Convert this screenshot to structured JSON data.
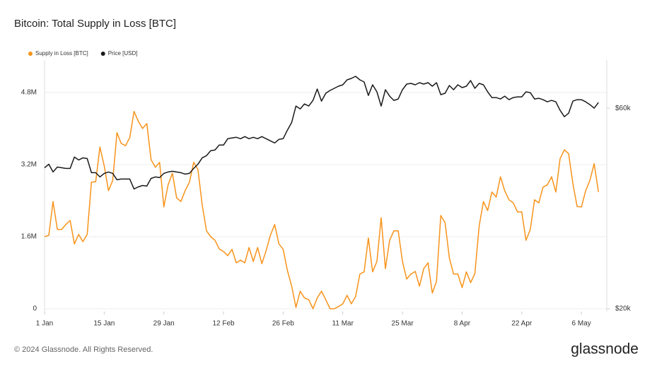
{
  "chart_data": {
    "type": "line",
    "title": "Bitcoin: Total Supply in Loss [BTC]",
    "categories": [
      "1 Jan",
      null,
      null,
      null,
      null,
      null,
      null,
      null,
      null,
      null,
      null,
      null,
      null,
      null,
      "15 Jan",
      null,
      null,
      null,
      null,
      null,
      null,
      null,
      null,
      null,
      null,
      null,
      null,
      null,
      "29 Jan",
      null,
      null,
      null,
      null,
      null,
      null,
      null,
      null,
      null,
      null,
      null,
      null,
      null,
      "12 Feb",
      null,
      null,
      null,
      null,
      null,
      null,
      null,
      null,
      null,
      null,
      null,
      null,
      null,
      "26 Feb",
      null,
      null,
      null,
      null,
      null,
      null,
      null,
      null,
      null,
      null,
      null,
      null,
      null,
      "11 Mar",
      null,
      null,
      null,
      null,
      null,
      null,
      null,
      null,
      null,
      null,
      null,
      null,
      null,
      "25 Mar",
      null,
      null,
      null,
      null,
      null,
      null,
      null,
      null,
      null,
      null,
      null,
      null,
      null,
      "8 Apr",
      null,
      null,
      null,
      null,
      null,
      null,
      null,
      null,
      null,
      null,
      null,
      null,
      null,
      "22 Apr",
      null,
      null,
      null,
      null,
      null,
      null,
      null,
      null,
      null,
      null,
      null,
      null,
      null,
      "6 May",
      null,
      null,
      null,
      null
    ],
    "series": [
      {
        "name": "Supply in Loss [BTC]",
        "color": "#f7931a",
        "values": [
          1600000,
          1630000,
          2380000,
          1760000,
          1760000,
          1870000,
          1960000,
          1440000,
          1650000,
          1490000,
          1650000,
          2810000,
          2820000,
          3590000,
          3170000,
          2620000,
          2850000,
          3910000,
          3670000,
          3620000,
          3800000,
          4380000,
          4160000,
          4000000,
          4110000,
          3310000,
          3140000,
          3250000,
          2260000,
          2750000,
          3010000,
          2460000,
          2380000,
          2620000,
          2810000,
          3250000,
          3090000,
          2310000,
          1730000,
          1600000,
          1520000,
          1330000,
          1270000,
          1180000,
          1320000,
          1020000,
          1080000,
          1020000,
          1360000,
          1050000,
          1360000,
          1000000,
          1290000,
          1630000,
          1870000,
          1440000,
          1320000,
          850000,
          500000,
          30000,
          390000,
          240000,
          200000,
          0,
          240000,
          390000,
          200000,
          0,
          0,
          50000,
          110000,
          300000,
          110000,
          270000,
          770000,
          820000,
          1570000,
          820000,
          1050000,
          2020000,
          890000,
          1520000,
          1730000,
          1730000,
          1050000,
          660000,
          770000,
          830000,
          500000,
          890000,
          1020000,
          350000,
          610000,
          2070000,
          1910000,
          1130000,
          770000,
          770000,
          470000,
          820000,
          580000,
          780000,
          1840000,
          2380000,
          2180000,
          2590000,
          2480000,
          2930000,
          2620000,
          2420000,
          2350000,
          2150000,
          2150000,
          1520000,
          1760000,
          2420000,
          2350000,
          2700000,
          2750000,
          2930000,
          2590000,
          3330000,
          3530000,
          3440000,
          2780000,
          2270000,
          2260000,
          2620000,
          2850000,
          3220000,
          2590000
        ]
      },
      {
        "name": "Price [USD]",
        "color": "#1a1a1a",
        "axis": "y2",
        "values": [
          43300,
          44150,
          42310,
          43470,
          43300,
          43130,
          43130,
          45900,
          45190,
          45720,
          45540,
          42140,
          42140,
          41170,
          41980,
          42310,
          41980,
          40540,
          40700,
          40700,
          40700,
          38550,
          38990,
          39300,
          39150,
          40850,
          41170,
          41020,
          41980,
          42310,
          42470,
          42310,
          42140,
          41820,
          41980,
          43130,
          44150,
          45720,
          46260,
          47530,
          47720,
          49030,
          49030,
          50770,
          50970,
          51170,
          50770,
          51370,
          50770,
          51170,
          50770,
          51370,
          50770,
          50190,
          49610,
          50580,
          50770,
          53200,
          55520,
          60700,
          59770,
          61410,
          60700,
          62620,
          66640,
          62380,
          65100,
          66120,
          66890,
          67680,
          68200,
          70080,
          70620,
          71460,
          70080,
          69260,
          64340,
          68200,
          65610,
          60700,
          66380,
          64090,
          62620,
          63110,
          66380,
          68470,
          68730,
          68200,
          69000,
          68470,
          69000,
          67680,
          69000,
          64600,
          65100,
          67940,
          66380,
          68200,
          67150,
          67680,
          69800,
          66890,
          68730,
          68200,
          65610,
          63600,
          63600,
          63110,
          64090,
          62860,
          63600,
          63840,
          63840,
          65610,
          65350,
          63110,
          63350,
          62860,
          62130,
          62620,
          62130,
          59310,
          57270,
          58390,
          62380,
          62860,
          62860,
          62130,
          61170,
          60000,
          61890
        ]
      }
    ],
    "ylim": [
      0,
      5520000
    ],
    "yticks": [
      0,
      {
        "value": 1600000,
        "label": "1.6M"
      },
      {
        "value": 3200000,
        "label": "3.2M"
      },
      {
        "value": 4800000,
        "label": "4.8M"
      }
    ],
    "y2lim": [
      20000,
      78100
    ],
    "y2scale": "log",
    "y2ticks": [
      {
        "value": 20000,
        "label": "$20k"
      },
      {
        "value": 60000,
        "label": "$60k"
      }
    ],
    "grid": true,
    "legend": "top-left"
  },
  "footer": {
    "copyright": "© 2024 Glassnode. All Rights Reserved.",
    "logo": "glassnode"
  }
}
